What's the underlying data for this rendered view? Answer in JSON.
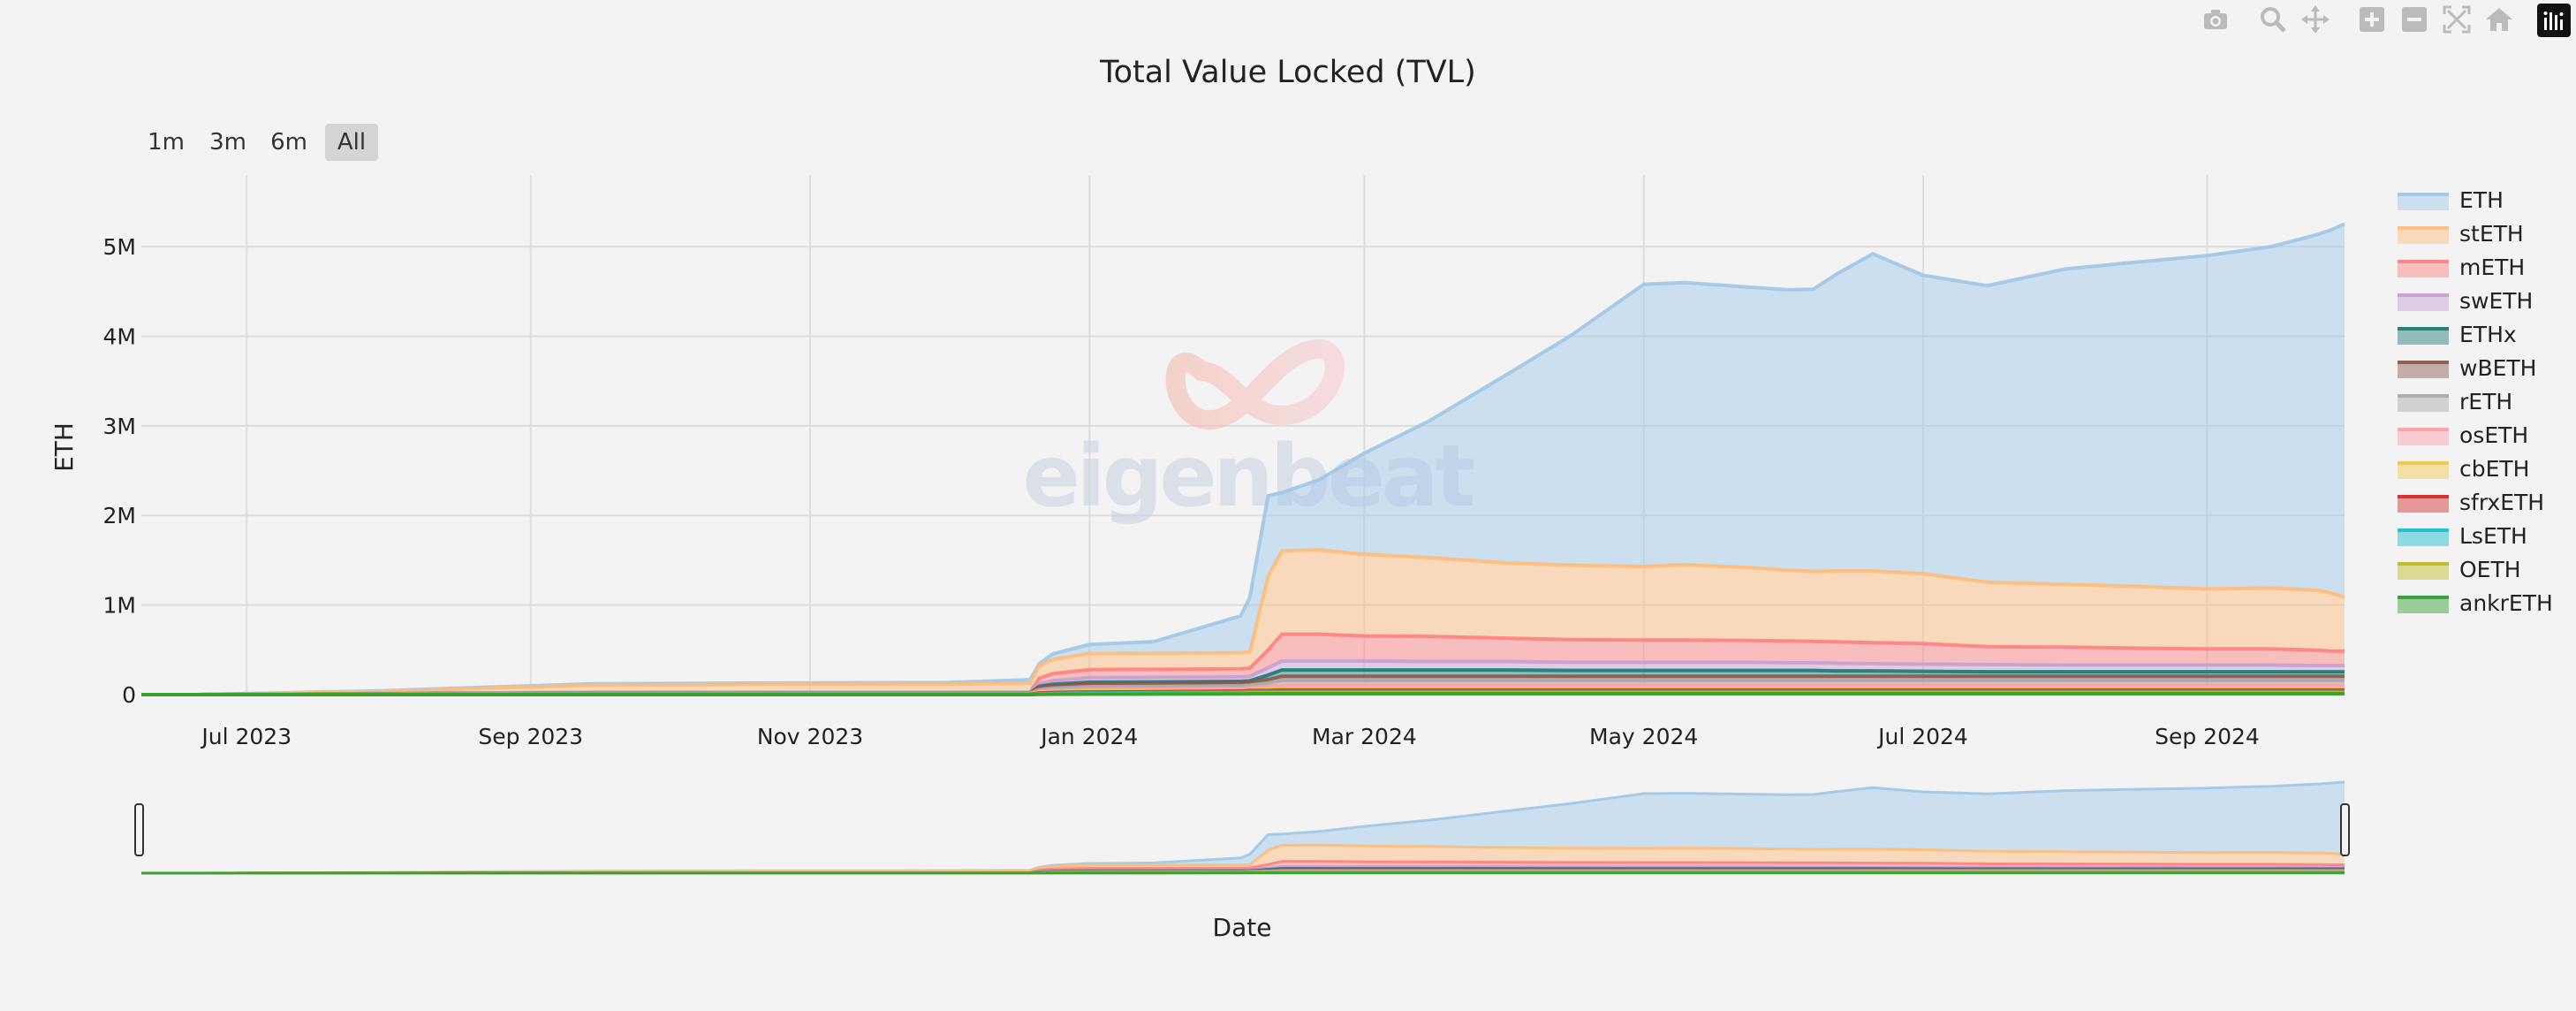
{
  "title": "Total Value Locked (TVL)",
  "range_buttons": [
    "1m",
    "3m",
    "6m",
    "All"
  ],
  "active_range": "All",
  "modebar_icons": [
    "camera-icon",
    "zoom-icon",
    "pan-icon",
    "zoom-in-icon",
    "zoom-out-icon",
    "autoscale-icon",
    "reset-axes-icon",
    "plotly-logo-icon"
  ],
  "watermark": "eigenbeat",
  "chart_data": {
    "type": "area",
    "stacked": true,
    "title": "Total Value Locked (TVL)",
    "xlabel": "Date",
    "ylabel": "ETH",
    "ylim": [
      0,
      5800000
    ],
    "xlim": [
      "2023-06-08",
      "2024-10-01"
    ],
    "x_ticks": [
      {
        "date": "2023-07-01",
        "label": "Jul 2023"
      },
      {
        "date": "2023-09-01",
        "label": "Sep 2023"
      },
      {
        "date": "2023-11-01",
        "label": "Nov 2023"
      },
      {
        "date": "2024-01-01",
        "label": "Jan 2024"
      },
      {
        "date": "2024-03-01",
        "label": "Mar 2024"
      },
      {
        "date": "2024-05-01",
        "label": "May 2024"
      },
      {
        "date": "2024-07-01",
        "label": "Jul 2024"
      },
      {
        "date": "2024-09-01",
        "label": "Sep 2024"
      }
    ],
    "y_ticks": [
      {
        "value": 0,
        "label": "0"
      },
      {
        "value": 1000000,
        "label": "1M"
      },
      {
        "value": 2000000,
        "label": "2M"
      },
      {
        "value": 3000000,
        "label": "3M"
      },
      {
        "value": 4000000,
        "label": "4M"
      },
      {
        "value": 5000000,
        "label": "5M"
      }
    ],
    "grid": true,
    "legend_position": "right",
    "has_range_slider": true,
    "x": [
      "2023-06-08",
      "2023-06-20",
      "2023-07-30",
      "2023-08-20",
      "2023-09-15",
      "2023-10-31",
      "2023-12-01",
      "2023-12-19",
      "2023-12-21",
      "2023-12-24",
      "2024-01-01",
      "2024-01-15",
      "2024-02-03",
      "2024-02-05",
      "2024-02-09",
      "2024-02-12",
      "2024-02-20",
      "2024-03-01",
      "2024-03-15",
      "2024-04-01",
      "2024-04-15",
      "2024-05-01",
      "2024-05-10",
      "2024-05-25",
      "2024-06-01",
      "2024-06-07",
      "2024-06-12",
      "2024-06-20",
      "2024-07-01",
      "2024-07-15",
      "2024-08-01",
      "2024-08-15",
      "2024-09-01",
      "2024-09-15",
      "2024-09-25",
      "2024-09-28",
      "2024-10-01"
    ],
    "series": [
      {
        "name": "ankrETH",
        "color": "#2ca02c",
        "values": [
          0,
          0,
          0,
          0,
          0,
          0,
          0,
          0,
          3000,
          4000,
          5000,
          6000,
          8000,
          10000,
          10000,
          10000,
          10000,
          10000,
          10000,
          10000,
          10000,
          10000,
          10000,
          10000,
          10000,
          10000,
          10000,
          10000,
          10000,
          10000,
          10000,
          10000,
          10000,
          10000,
          10000,
          10000,
          10000
        ]
      },
      {
        "name": "OETH",
        "color": "#bcbd22",
        "values": [
          0,
          0,
          0,
          0,
          0,
          0,
          0,
          0,
          3000,
          4000,
          5000,
          6000,
          8000,
          10000,
          10000,
          10000,
          10000,
          10000,
          10000,
          10000,
          10000,
          10000,
          10000,
          10000,
          10000,
          10000,
          10000,
          10000,
          10000,
          10000,
          10000,
          10000,
          10000,
          10000,
          10000,
          10000,
          10000
        ]
      },
      {
        "name": "LsETH",
        "color": "#17becf",
        "values": [
          0,
          0,
          0,
          0,
          0,
          0,
          0,
          0,
          5000,
          7000,
          9000,
          10000,
          12000,
          15000,
          15000,
          15000,
          15000,
          15000,
          15000,
          15000,
          15000,
          15000,
          15000,
          15000,
          15000,
          15000,
          15000,
          15000,
          15000,
          15000,
          15000,
          15000,
          15000,
          15000,
          15000,
          15000,
          15000
        ]
      },
      {
        "name": "sfrxETH",
        "color": "#d62728",
        "values": [
          0,
          0,
          2000,
          3000,
          4000,
          4000,
          4000,
          4000,
          8000,
          9000,
          10000,
          10000,
          10000,
          10000,
          12000,
          15000,
          15000,
          15000,
          15000,
          15000,
          15000,
          15000,
          15000,
          15000,
          15000,
          15000,
          15000,
          15000,
          15000,
          15000,
          15000,
          15000,
          15000,
          15000,
          15000,
          15000,
          15000
        ]
      },
      {
        "name": "cbETH",
        "color": "#f2c744",
        "values": [
          0,
          0,
          2000,
          3000,
          4000,
          4000,
          4000,
          4000,
          8000,
          9000,
          10000,
          10000,
          10000,
          10000,
          12000,
          15000,
          15000,
          15000,
          15000,
          15000,
          15000,
          15000,
          15000,
          15000,
          15000,
          15000,
          15000,
          15000,
          15000,
          15000,
          15000,
          15000,
          15000,
          15000,
          15000,
          15000,
          15000
        ]
      },
      {
        "name": "osETH",
        "color": "#ff9da7",
        "values": [
          0,
          0,
          0,
          0,
          0,
          0,
          0,
          0,
          10000,
          15000,
          20000,
          20000,
          20000,
          20000,
          30000,
          40000,
          40000,
          40000,
          40000,
          40000,
          40000,
          40000,
          40000,
          40000,
          40000,
          40000,
          40000,
          40000,
          40000,
          40000,
          40000,
          40000,
          40000,
          40000,
          40000,
          40000,
          40000
        ]
      },
      {
        "name": "rETH",
        "color": "#a9a9a9",
        "values": [
          0,
          0,
          5000,
          8000,
          10000,
          10000,
          10000,
          10000,
          20000,
          25000,
          30000,
          30000,
          30000,
          30000,
          40000,
          50000,
          50000,
          50000,
          50000,
          50000,
          50000,
          50000,
          50000,
          50000,
          50000,
          50000,
          50000,
          50000,
          50000,
          50000,
          50000,
          50000,
          50000,
          50000,
          50000,
          50000,
          50000
        ]
      },
      {
        "name": "wBETH",
        "color": "#8c564b",
        "values": [
          0,
          0,
          0,
          0,
          0,
          0,
          0,
          0,
          25000,
          30000,
          35000,
          35000,
          35000,
          35000,
          40000,
          50000,
          50000,
          50000,
          50000,
          50000,
          50000,
          50000,
          50000,
          50000,
          50000,
          50000,
          50000,
          50000,
          50000,
          50000,
          50000,
          50000,
          50000,
          50000,
          50000,
          50000,
          50000
        ]
      },
      {
        "name": "ETHx",
        "color": "#1a7a73",
        "values": [
          0,
          0,
          0,
          0,
          0,
          0,
          0,
          0,
          10000,
          12000,
          15000,
          15000,
          15000,
          15000,
          50000,
          70000,
          70000,
          70000,
          70000,
          70000,
          65000,
          65000,
          65000,
          65000,
          65000,
          65000,
          60000,
          60000,
          55000,
          50000,
          50000,
          50000,
          50000,
          50000,
          50000,
          50000,
          50000
        ]
      },
      {
        "name": "swETH",
        "color": "#c79fd1",
        "values": [
          0,
          0,
          3000,
          5000,
          8000,
          8000,
          8000,
          8000,
          30000,
          40000,
          50000,
          50000,
          50000,
          50000,
          80000,
          100000,
          100000,
          100000,
          95000,
          95000,
          90000,
          90000,
          90000,
          90000,
          85000,
          85000,
          85000,
          80000,
          80000,
          80000,
          75000,
          75000,
          75000,
          75000,
          70000,
          70000,
          70000
        ]
      },
      {
        "name": "mETH",
        "color": "#ff7f7f",
        "values": [
          0,
          0,
          0,
          0,
          0,
          0,
          0,
          0,
          60000,
          80000,
          90000,
          90000,
          90000,
          90000,
          200000,
          300000,
          300000,
          280000,
          280000,
          260000,
          255000,
          250000,
          250000,
          245000,
          245000,
          240000,
          240000,
          235000,
          230000,
          200000,
          200000,
          190000,
          180000,
          180000,
          170000,
          160000,
          160000
        ]
      },
      {
        "name": "stETH",
        "color": "#ffbb78",
        "values": [
          0,
          0,
          20000,
          50000,
          80000,
          90000,
          90000,
          100000,
          140000,
          160000,
          180000,
          180000,
          180000,
          180000,
          820000,
          930000,
          940000,
          910000,
          880000,
          840000,
          830000,
          820000,
          840000,
          810000,
          790000,
          780000,
          790000,
          800000,
          780000,
          720000,
          700000,
          690000,
          670000,
          680000,
          670000,
          650000,
          600000
        ]
      },
      {
        "name": "ETH",
        "color": "#9ec7e8",
        "values": [
          0,
          0,
          10000,
          10000,
          15000,
          15000,
          20000,
          40000,
          20000,
          60000,
          100000,
          130000,
          410000,
          610000,
          900000,
          650000,
          780000,
          1130000,
          1520000,
          2100000,
          2560000,
          3150000,
          3150000,
          3130000,
          3130000,
          3150000,
          3310000,
          3540000,
          3330000,
          3310000,
          3520000,
          3610000,
          3720000,
          3810000,
          3970000,
          4050000,
          4170000
        ]
      }
    ]
  }
}
